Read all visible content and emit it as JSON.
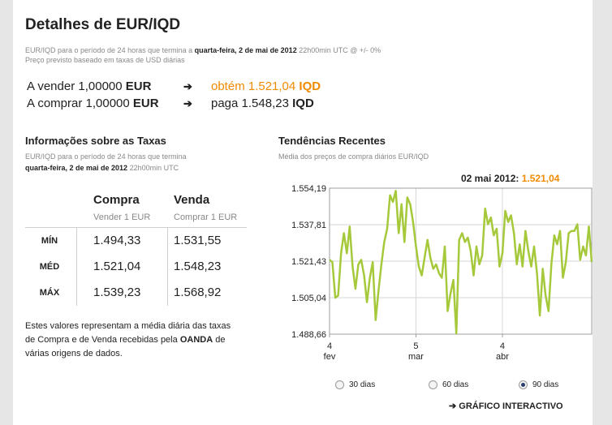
{
  "title": "Detalhes de EUR/IQD",
  "subtitle": {
    "line1_prefix": "EUR/IQD para o período de 24 horas que termina a",
    "line1_date": "quarta-feira, 2 de mai de 2012",
    "line1_suffix": "22h00min UTC @ +/- 0%",
    "line2": "Preço previsto baseado em taxas de USD diárias"
  },
  "conversions": {
    "sell": {
      "prefix": "A vender 1,00000",
      "currency": "EUR",
      "arrow": "➔",
      "result_text": "obtém 1.521,04",
      "result_currency": "IQD"
    },
    "buy": {
      "prefix": "A comprar 1,00000",
      "currency": "EUR",
      "arrow": "➔",
      "result_text": "paga 1.548,23",
      "result_currency": "IQD"
    }
  },
  "rates_info": {
    "heading": "Informações sobre as Taxas",
    "desc_line1": "EUR/IQD para o período de 24 horas que termina",
    "desc_date": "quarta-feira, 2 de mai de 2012",
    "desc_time": "22h00min UTC",
    "columns": [
      {
        "title": "Compra",
        "subtitle": "Vender 1 EUR"
      },
      {
        "title": "Venda",
        "subtitle": "Comprar 1 EUR"
      }
    ],
    "rows": [
      {
        "label": "MÍN",
        "compra": "1.494,33",
        "venda": "1.531,55",
        "highlight": false
      },
      {
        "label": "MÉD",
        "compra": "1.521,04",
        "venda": "1.548,23",
        "highlight": true
      },
      {
        "label": "MÁX",
        "compra": "1.539,23",
        "venda": "1.568,92",
        "highlight": false
      }
    ],
    "note_part1": "Estes valores representam a média diária das taxas de Compra e de Venda recebidas pela",
    "note_bold": "OANDA",
    "note_part2": "de várias origens de dados."
  },
  "trends": {
    "heading": "Tendências Recentes",
    "subtitle": "Média dos preços de compra diários EUR/IQD",
    "current_label": "02 mai 2012:",
    "current_value": "1.521,04"
  },
  "chart_data": {
    "type": "line",
    "title": "Tendências Recentes",
    "y_ticks": [
      "1.554,19",
      "1.537,81",
      "1.521,43",
      "1.505,04",
      "1.488,66"
    ],
    "y_tick_values": [
      1554.19,
      1537.81,
      1521.43,
      1505.04,
      1488.66
    ],
    "ylim": [
      1488.66,
      1554.19
    ],
    "x_ticks": [
      {
        "day": "4",
        "month": "fev",
        "index": 0
      },
      {
        "day": "5",
        "month": "mar",
        "index": 30
      },
      {
        "day": "4",
        "month": "abr",
        "index": 60
      }
    ],
    "series": [
      {
        "name": "EUR/IQD compra",
        "color": "#a6c93b",
        "values": [
          1522,
          1521,
          1505,
          1506,
          1525,
          1534,
          1525,
          1537,
          1519,
          1509,
          1520,
          1522,
          1515,
          1503,
          1514,
          1521,
          1495,
          1508,
          1520,
          1530,
          1536,
          1551,
          1548,
          1553,
          1534,
          1547,
          1530,
          1550,
          1547,
          1539,
          1528,
          1519,
          1515,
          1523,
          1531,
          1523,
          1518,
          1520,
          1516,
          1514,
          1528,
          1499,
          1507,
          1513,
          1489,
          1531,
          1534,
          1530,
          1532,
          1526,
          1515,
          1528,
          1520,
          1524,
          1545,
          1538,
          1541,
          1533,
          1536,
          1519,
          1525,
          1544,
          1539,
          1542,
          1534,
          1520,
          1529,
          1519,
          1535,
          1526,
          1519,
          1528,
          1516,
          1497,
          1518,
          1506,
          1499,
          1520,
          1533,
          1529,
          1535,
          1514,
          1521,
          1534,
          1535,
          1535,
          1538,
          1522,
          1528,
          1524,
          1537,
          1521
        ]
      }
    ]
  },
  "range_options": [
    {
      "label": "30 dias",
      "selected": false
    },
    {
      "label": "60 dias",
      "selected": false
    },
    {
      "label": "90 dias",
      "selected": true
    }
  ],
  "interactive_link": {
    "arrow": "➔",
    "label": "GRÁFICO INTERACTIVO"
  }
}
